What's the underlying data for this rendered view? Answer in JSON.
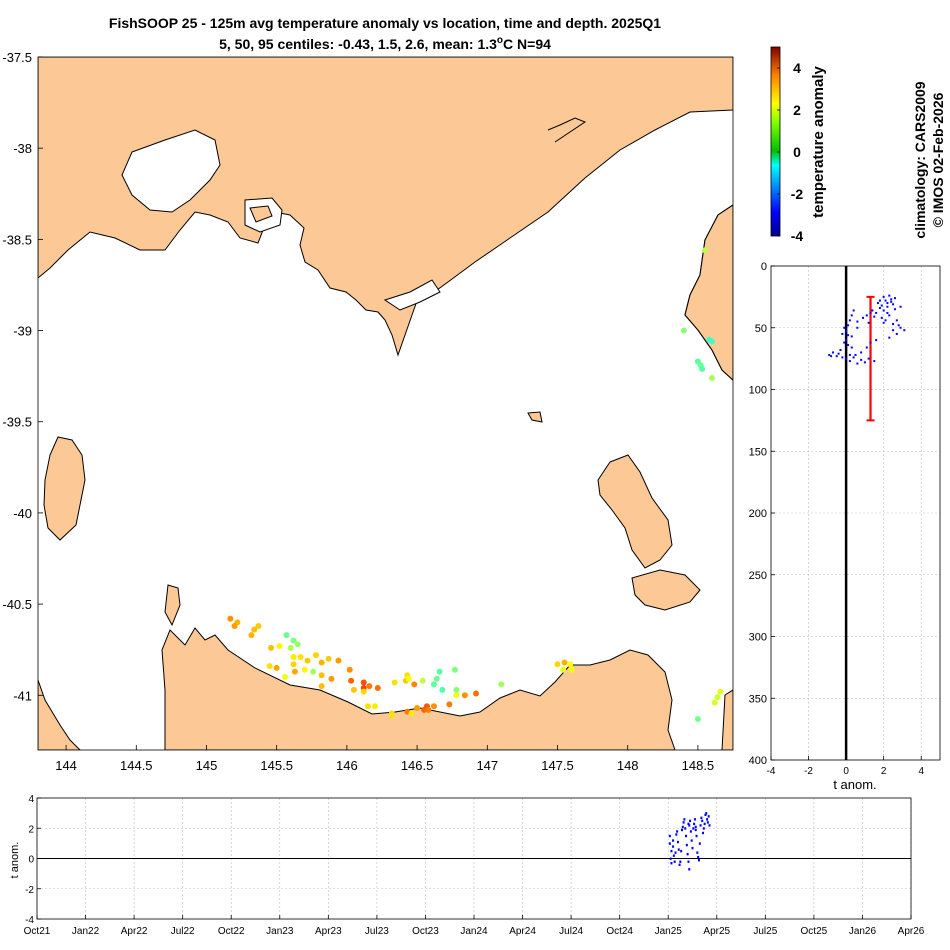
{
  "title_line1": "FishSOOP 25 - 125m avg temperature anomaly vs location, time and depth. 2025Q1",
  "title_line2_prefix": "5, 50, 95 centiles: -0.43, 1.5, 2.6, mean: 1.3",
  "title_line2_sup": "o",
  "title_line2_suffix": "C N=94",
  "side_text_1": "climatology: CARS2009",
  "side_text_2": "© IMOS 02-Feb-2026",
  "colors": {
    "land": "#fbc896",
    "coast": "#000000",
    "profile": "#0000ff",
    "range": "#ff0000",
    "grid": "#c0c0c0"
  },
  "chart_data": [
    {
      "id": "map",
      "type": "scatter",
      "xlim": [
        143.8,
        148.75
      ],
      "ylim": [
        -41.3,
        -37.5
      ],
      "xticks": [
        "144",
        "144.5",
        "145",
        "145.5",
        "146",
        "146.5",
        "147",
        "147.5",
        "148",
        "148.5"
      ],
      "yticks": [
        "-37.5",
        "-38",
        "-38.5",
        "-39",
        "-39.5",
        "-40",
        "-40.5",
        "-41"
      ],
      "grid": false,
      "points": [
        [
          148.55,
          -38.56,
          1.0
        ],
        [
          148.4,
          -39.0,
          0.6
        ],
        [
          148.58,
          -39.05,
          -0.1
        ],
        [
          148.6,
          -39.06,
          0.0
        ],
        [
          148.5,
          -39.17,
          0.2
        ],
        [
          148.52,
          -39.19,
          0.3
        ],
        [
          148.53,
          -39.21,
          0.1
        ],
        [
          148.6,
          -39.26,
          0.8
        ],
        [
          148.66,
          -40.98,
          1.4
        ],
        [
          148.64,
          -41.01,
          1.2
        ],
        [
          148.62,
          -41.04,
          1.3
        ],
        [
          148.5,
          -41.13,
          0.4
        ],
        [
          145.17,
          -40.58,
          2.6
        ],
        [
          145.22,
          -40.6,
          2.3
        ],
        [
          145.2,
          -40.62,
          2.5
        ],
        [
          145.37,
          -40.62,
          2.1
        ],
        [
          145.34,
          -40.64,
          2.2
        ],
        [
          145.32,
          -40.67,
          2.3
        ],
        [
          145.57,
          -40.67,
          0.3
        ],
        [
          145.62,
          -40.7,
          0.5
        ],
        [
          145.65,
          -40.72,
          0.7
        ],
        [
          145.6,
          -40.74,
          0.9
        ],
        [
          145.52,
          -40.73,
          1.7
        ],
        [
          145.46,
          -40.74,
          2.2
        ],
        [
          145.62,
          -40.79,
          1.8
        ],
        [
          145.67,
          -40.79,
          1.9
        ],
        [
          145.78,
          -40.78,
          2.0
        ],
        [
          145.72,
          -40.81,
          2.1
        ],
        [
          145.82,
          -40.82,
          2.3
        ],
        [
          145.87,
          -40.8,
          2.1
        ],
        [
          145.94,
          -40.81,
          2.5
        ],
        [
          145.62,
          -40.83,
          2.0
        ],
        [
          145.45,
          -40.84,
          1.9
        ],
        [
          145.5,
          -40.85,
          2.4
        ],
        [
          145.7,
          -40.86,
          1.7
        ],
        [
          145.76,
          -40.87,
          0.8
        ],
        [
          145.63,
          -40.87,
          2.4
        ],
        [
          145.82,
          -40.89,
          2.2
        ],
        [
          146.02,
          -40.86,
          2.6
        ],
        [
          145.56,
          -40.9,
          1.5
        ],
        [
          145.89,
          -40.91,
          2.5
        ],
        [
          145.82,
          -40.95,
          2.2
        ],
        [
          146.03,
          -40.92,
          3.0
        ],
        [
          146.12,
          -40.93,
          3.2
        ],
        [
          146.12,
          -40.96,
          3.3
        ],
        [
          146.16,
          -40.95,
          2.8
        ],
        [
          146.22,
          -40.96,
          2.9
        ],
        [
          146.05,
          -40.97,
          2.1
        ],
        [
          146.12,
          -40.98,
          2.0
        ],
        [
          146.15,
          -41.06,
          1.9
        ],
        [
          146.2,
          -41.06,
          1.8
        ],
        [
          146.32,
          -41.1,
          2.0
        ],
        [
          146.43,
          -41.09,
          2.8
        ],
        [
          146.5,
          -41.07,
          2.5
        ],
        [
          146.55,
          -41.08,
          3.0
        ],
        [
          146.57,
          -41.06,
          3.1
        ],
        [
          146.58,
          -41.08,
          2.8
        ],
        [
          146.46,
          -41.1,
          1.8
        ],
        [
          146.32,
          -41.11,
          1.9
        ],
        [
          146.42,
          -40.92,
          2.1
        ],
        [
          146.43,
          -40.89,
          1.9
        ],
        [
          146.44,
          -40.91,
          1.6
        ],
        [
          146.34,
          -40.93,
          1.9
        ],
        [
          146.48,
          -40.94,
          2.7
        ],
        [
          146.54,
          -40.92,
          1.1
        ],
        [
          146.64,
          -40.91,
          0.3
        ],
        [
          146.62,
          -40.94,
          0.2
        ],
        [
          146.66,
          -40.87,
          0.1
        ],
        [
          146.68,
          -40.97,
          0.1
        ],
        [
          146.77,
          -40.86,
          0.5
        ],
        [
          146.78,
          -40.97,
          0.6
        ],
        [
          146.62,
          -41.06,
          2.6
        ],
        [
          146.73,
          -41.05,
          2.8
        ],
        [
          146.78,
          -41.0,
          1.5
        ],
        [
          146.84,
          -41.0,
          2.6
        ],
        [
          146.92,
          -40.99,
          2.9
        ],
        [
          147.1,
          -40.94,
          0.8
        ],
        [
          147.5,
          -40.83,
          2.0
        ],
        [
          147.55,
          -40.82,
          2.3
        ],
        [
          147.54,
          -40.86,
          1.4
        ],
        [
          147.59,
          -40.83,
          1.6
        ],
        [
          147.6,
          -40.86,
          1.5
        ]
      ]
    },
    {
      "id": "colorbar",
      "type": "heatmap",
      "title": "temperature anomaly",
      "range": [
        -4,
        5
      ],
      "ticks": [
        "4",
        "2",
        "0",
        "-2",
        "-4"
      ]
    },
    {
      "id": "depth_profile",
      "type": "scatter",
      "xlabel": "t anom.",
      "xlim": [
        -4,
        5
      ],
      "ylim": [
        0,
        400
      ],
      "xticks": [
        "-4",
        "-2",
        "0",
        "2",
        "4"
      ],
      "yticks": [
        "0",
        "50",
        "100",
        "150",
        "200",
        "250",
        "300",
        "350",
        "400"
      ],
      "grid": true,
      "mean_line": {
        "x": 1.3,
        "depth_min": 25,
        "depth_max": 125
      },
      "points": [
        [
          2.0,
          25
        ],
        [
          2.3,
          24
        ],
        [
          2.1,
          28
        ],
        [
          2.2,
          30
        ],
        [
          1.9,
          32
        ],
        [
          2.4,
          27
        ],
        [
          2.5,
          31
        ],
        [
          1.8,
          34
        ],
        [
          2.0,
          36
        ],
        [
          2.2,
          38
        ],
        [
          1.6,
          38
        ],
        [
          2.6,
          35
        ],
        [
          2.3,
          40
        ],
        [
          1.5,
          41
        ],
        [
          1.9,
          42
        ],
        [
          2.1,
          44
        ],
        [
          2.7,
          44
        ],
        [
          1.2,
          46
        ],
        [
          2.8,
          48
        ],
        [
          0.4,
          36
        ],
        [
          0.3,
          40
        ],
        [
          0.2,
          44
        ],
        [
          0.1,
          48
        ],
        [
          -0.1,
          50
        ],
        [
          0.0,
          53
        ],
        [
          -0.2,
          55
        ],
        [
          0.6,
          50
        ],
        [
          0.3,
          57
        ],
        [
          0.0,
          60
        ],
        [
          0.1,
          64
        ],
        [
          -0.3,
          68
        ],
        [
          -0.7,
          70
        ],
        [
          -0.9,
          72
        ],
        [
          -0.5,
          73
        ],
        [
          -0.2,
          74
        ],
        [
          0.0,
          75
        ],
        [
          0.4,
          74
        ],
        [
          0.8,
          76
        ],
        [
          1.2,
          75
        ],
        [
          1.5,
          77
        ],
        [
          1.0,
          78
        ],
        [
          0.6,
          79
        ],
        [
          0.2,
          77
        ],
        [
          2.5,
          52
        ],
        [
          2.9,
          50
        ],
        [
          3.1,
          52
        ],
        [
          2.7,
          55
        ],
        [
          2.3,
          58
        ],
        [
          1.6,
          60
        ],
        [
          1.3,
          62
        ],
        [
          1.1,
          66
        ],
        [
          0.8,
          70
        ],
        [
          0.5,
          72
        ],
        [
          0.2,
          72
        ],
        [
          -0.4,
          71
        ],
        [
          -0.8,
          73
        ],
        [
          0.3,
          66
        ],
        [
          2.2,
          33
        ],
        [
          1.7,
          30
        ],
        [
          2.4,
          29
        ],
        [
          0.6,
          45
        ],
        [
          0.9,
          42
        ],
        [
          1.1,
          40
        ],
        [
          1.3,
          38
        ],
        [
          1.4,
          36
        ],
        [
          1.8,
          28
        ],
        [
          2.6,
          26
        ],
        [
          2.9,
          33
        ],
        [
          2.0,
          46
        ],
        [
          2.5,
          47
        ],
        [
          0.1,
          56
        ],
        [
          -0.1,
          62
        ]
      ]
    },
    {
      "id": "time_series",
      "type": "scatter",
      "ylabel": "t anom.",
      "ylim": [
        -4,
        4
      ],
      "yticks": [
        "4",
        "2",
        "0",
        "-2",
        "-4"
      ],
      "xticks": [
        "Oct21",
        "Jan22",
        "Apr22",
        "Jul22",
        "Oct22",
        "Jan23",
        "Apr23",
        "Jul23",
        "Oct23",
        "Jan24",
        "Apr24",
        "Jul24",
        "Oct24",
        "Jan25",
        "Apr25",
        "Jul25",
        "Oct25",
        "Jan26",
        "Apr26"
      ],
      "grid": true,
      "x_range_months": [
        0,
        54
      ],
      "points": [
        [
          39.1,
          1.5
        ],
        [
          39.1,
          1.0
        ],
        [
          39.2,
          0.5
        ],
        [
          39.15,
          0.0
        ],
        [
          39.2,
          -0.3
        ],
        [
          39.3,
          0.8
        ],
        [
          39.3,
          1.2
        ],
        [
          39.35,
          0.2
        ],
        [
          39.4,
          -0.2
        ],
        [
          39.45,
          0.4
        ],
        [
          39.5,
          1.6
        ],
        [
          39.55,
          1.8
        ],
        [
          39.6,
          1.1
        ],
        [
          39.65,
          0.6
        ],
        [
          39.7,
          -0.4
        ],
        [
          39.75,
          -0.2
        ],
        [
          39.8,
          0.5
        ],
        [
          39.85,
          1.9
        ],
        [
          39.9,
          2.1
        ],
        [
          39.95,
          2.4
        ],
        [
          40.0,
          2.6
        ],
        [
          40.05,
          2.0
        ],
        [
          40.1,
          1.5
        ],
        [
          40.15,
          0.9
        ],
        [
          40.2,
          0.3
        ],
        [
          40.25,
          -0.2
        ],
        [
          40.3,
          -0.7
        ],
        [
          40.3,
          2.2
        ],
        [
          40.35,
          2.5
        ],
        [
          40.4,
          1.8
        ],
        [
          40.45,
          1.2
        ],
        [
          40.5,
          0.7
        ],
        [
          40.55,
          2.0
        ],
        [
          40.6,
          2.3
        ],
        [
          40.65,
          2.6
        ],
        [
          40.7,
          2.1
        ],
        [
          40.75,
          1.5
        ],
        [
          40.8,
          0.4
        ],
        [
          40.85,
          0.1
        ],
        [
          40.9,
          -0.1
        ],
        [
          40.95,
          1.0
        ],
        [
          41.0,
          2.2
        ],
        [
          41.05,
          2.7
        ],
        [
          41.1,
          2.5
        ],
        [
          41.15,
          1.7
        ],
        [
          41.2,
          2.0
        ],
        [
          41.25,
          2.3
        ],
        [
          41.3,
          2.9
        ],
        [
          41.35,
          3.0
        ],
        [
          41.4,
          2.6
        ],
        [
          41.45,
          2.4
        ],
        [
          41.5,
          2.8
        ],
        [
          41.55,
          2.2
        ],
        [
          40.7,
          1.9
        ],
        [
          40.25,
          2.3
        ]
      ]
    }
  ]
}
